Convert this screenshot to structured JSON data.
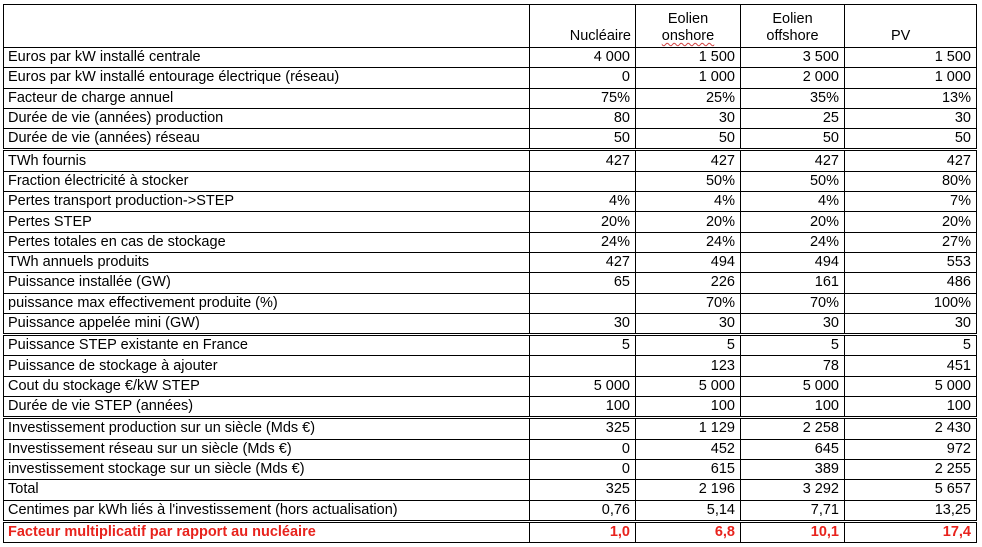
{
  "table": {
    "columns": [
      {
        "key": "nucleaire",
        "line1": "",
        "line2": "Nucléaire"
      },
      {
        "key": "eolien_onshore",
        "line1": "Eolien",
        "line2": "onshore"
      },
      {
        "key": "eolien_offshore",
        "line1": "Eolien",
        "line2": "offshore"
      },
      {
        "key": "pv",
        "line1": "",
        "line2": "PV"
      }
    ],
    "rows": [
      {
        "label": "Euros par kW installé centrale",
        "values": [
          "4 000",
          "1 500",
          "3 500",
          "1 500"
        ]
      },
      {
        "label": "Euros par kW installé entourage électrique (réseau)",
        "values": [
          "0",
          "1 000",
          "2 000",
          "1 000"
        ]
      },
      {
        "label": "Facteur de charge annuel",
        "values": [
          "75%",
          "25%",
          "35%",
          "13%"
        ]
      },
      {
        "label": "Durée de vie (années) production",
        "values": [
          "80",
          "30",
          "25",
          "30"
        ]
      },
      {
        "label": "Durée de vie (années) réseau",
        "values": [
          "50",
          "50",
          "50",
          "50"
        ]
      },
      {
        "label": "TWh fournis",
        "values": [
          "427",
          "427",
          "427",
          "427"
        ]
      },
      {
        "label": "Fraction électricité à stocker",
        "values": [
          "",
          "50%",
          "50%",
          "80%"
        ]
      },
      {
        "label": "Pertes transport production->STEP",
        "values": [
          "4%",
          "4%",
          "4%",
          "7%"
        ]
      },
      {
        "label": "Pertes STEP",
        "values": [
          "20%",
          "20%",
          "20%",
          "20%"
        ]
      },
      {
        "label": "Pertes totales en cas de stockage",
        "values": [
          "24%",
          "24%",
          "24%",
          "27%"
        ]
      },
      {
        "label": "TWh annuels produits",
        "values": [
          "427",
          "494",
          "494",
          "553"
        ]
      },
      {
        "label": "Puissance installée (GW)",
        "values": [
          "65",
          "226",
          "161",
          "486"
        ]
      },
      {
        "label": "puissance max effectivement produite (%)",
        "values": [
          "",
          "70%",
          "70%",
          "100%"
        ]
      },
      {
        "label": "Puissance appelée mini (GW)",
        "values": [
          "30",
          "30",
          "30",
          "30"
        ]
      },
      {
        "label": "Puissance STEP existante en France",
        "values": [
          "5",
          "5",
          "5",
          "5"
        ]
      },
      {
        "label": "Puissance de stockage à ajouter",
        "values": [
          "",
          "123",
          "78",
          "451"
        ]
      },
      {
        "label": "Cout du stockage €/kW STEP",
        "values": [
          "5 000",
          "5 000",
          "5 000",
          "5 000"
        ]
      },
      {
        "label": "Durée de vie STEP (années)",
        "values": [
          "100",
          "100",
          "100",
          "100"
        ]
      },
      {
        "label": "Investissement production sur un siècle (Mds €)",
        "values": [
          "325",
          "1 129",
          "2 258",
          "2 430"
        ]
      },
      {
        "label": "Investissement réseau sur un siècle (Mds €)",
        "values": [
          "0",
          "452",
          "645",
          "972"
        ]
      },
      {
        "label": "investissement stockage sur un siècle (Mds €)",
        "values": [
          "0",
          "615",
          "389",
          "2 255"
        ]
      },
      {
        "label": "Total",
        "values": [
          "325",
          "2 196",
          "3 292",
          "5 657"
        ]
      },
      {
        "label": "Centimes par kWh liés à l'investissement (hors actualisation)",
        "values": [
          "0,76",
          "5,14",
          "7,71",
          "13,25"
        ]
      },
      {
        "label": "Facteur multiplicatif par rapport au nucléaire",
        "values": [
          "1,0",
          "6,8",
          "10,1",
          "17,4"
        ]
      }
    ]
  },
  "colors": {
    "highlight_text": "#e8231d",
    "border": "#000000",
    "spellcheck_underline": "#d04040"
  }
}
